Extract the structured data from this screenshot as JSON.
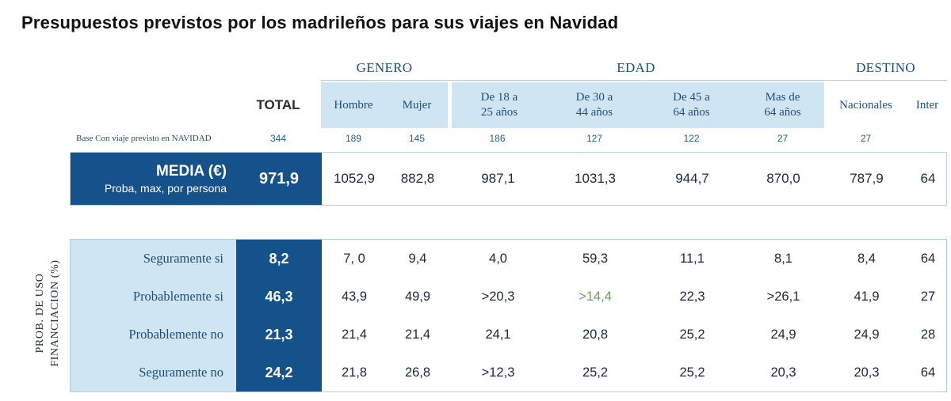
{
  "title": "Presupuestos previstos por los madrileños para sus viajes en Navidad",
  "colors": {
    "dark_blue": "#15528c",
    "light_blue": "#cfe6f2",
    "navy_text": "#1f4e79",
    "value_text": "#1b2a3a",
    "green": "#6f9e59",
    "border": "#a9cede",
    "title_text": "#111111"
  },
  "chart_data": {
    "type": "table",
    "title": "Presupuestos previstos por los madrileños para sus viajes en Navidad",
    "group_headers": [
      {
        "label": "GENERO"
      },
      {
        "label": "EDAD"
      },
      {
        "label": "DESTINO"
      }
    ],
    "total_header": "TOTAL",
    "columns": [
      "Hombre",
      "Mujer",
      "De 18 a\n25 años",
      "De 30 a\n44 años",
      "De 45 a\n64 años",
      "Mas de\n64 años",
      "Nacionales",
      "Inter"
    ],
    "base_row": {
      "label": "Base  Con viaje previsto en NAVIDAD",
      "total": "344",
      "values": [
        "189",
        "145",
        "186",
        "127",
        "122",
        "27",
        "27",
        ""
      ]
    },
    "media_row": {
      "label_line1": "MEDIA (€)",
      "label_line2": "Proba, max, por persona",
      "total": "971,9",
      "values": [
        "1052,9",
        "882,8",
        "987,1",
        "1031,3",
        "944,7",
        "870,0",
        "787,9",
        "64"
      ]
    },
    "side_label_line1": "PROB. DE USO",
    "side_label_line2": "FINANCIACION (%)",
    "rows": [
      {
        "label": "Seguramente si",
        "total": "8,2",
        "values": [
          "7, 0",
          "9,4",
          "4,0",
          "59,3",
          "11,1",
          "8,1",
          "8,4",
          "64"
        ]
      },
      {
        "label": "Probablemente si",
        "total": "46,3",
        "values": [
          "43,9",
          "49,9",
          ">20,3",
          ">14,4",
          "22,3",
          ">26,1",
          "41,9",
          "27"
        ]
      },
      {
        "label": "Probablemente no",
        "total": "21,3",
        "values": [
          "21,4",
          "21,4",
          "24,1",
          "20,8",
          "25,2",
          "24,9",
          "24,9",
          "28"
        ]
      },
      {
        "label": "Seguramente no",
        "total": "24,2",
        "values": [
          "21,8",
          "26,8",
          ">12,3",
          "25,2",
          "25,2",
          "20,3",
          "20,3",
          "64"
        ]
      }
    ]
  }
}
